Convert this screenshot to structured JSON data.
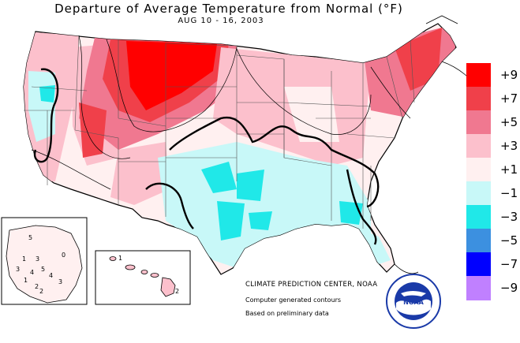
{
  "title": "Departure of Average Temperature from Normal (°F)",
  "subtitle": "AUG 10 - 16, 2003",
  "legend": [
    {
      "label": "+9",
      "color": "#ff0000"
    },
    {
      "label": "+7",
      "color": "#f0404a"
    },
    {
      "label": "+5",
      "color": "#f07890"
    },
    {
      "label": "+3",
      "color": "#fcc0cc"
    },
    {
      "label": "+1",
      "color": "#fff0f0"
    },
    {
      "label": "−1",
      "color": "#c8f8f8"
    },
    {
      "label": "−3",
      "color": "#20e8e8"
    },
    {
      "label": "−5",
      "color": "#3c90e0"
    },
    {
      "label": "−7",
      "color": "#0000ff"
    },
    {
      "label": "−9",
      "color": "#c080ff"
    }
  ],
  "credits": {
    "org": "CLIMATE PREDICTION CENTER, NOAA",
    "note1": "Computer generated contours",
    "note2": "Based on preliminary data"
  },
  "logo": {
    "text": "NOAA",
    "icon": "noaa-logo-icon"
  },
  "alaska_labels": [
    "5",
    "1",
    "3",
    "0",
    "3",
    "4",
    "5",
    "4",
    "1",
    "2",
    "3",
    "2"
  ],
  "hawaii_labels": [
    "1",
    "2"
  ]
}
